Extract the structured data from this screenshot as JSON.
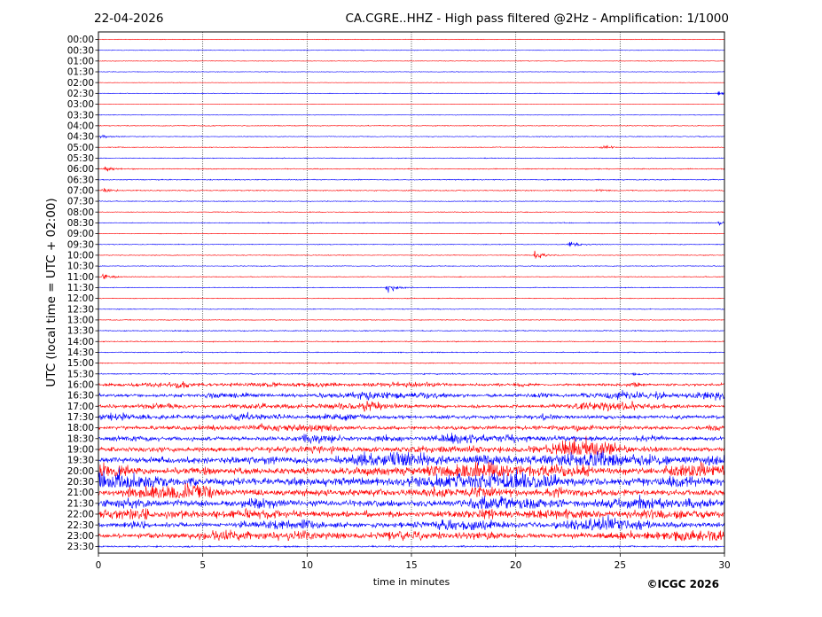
{
  "header": {
    "date": "22-04-2026",
    "title": "CA.CGRE..HHZ - High pass filtered @2Hz - Amplification: 1/1000"
  },
  "footer": {
    "copyright": "©ICGC 2026"
  },
  "colors": {
    "red": "#ff0000",
    "blue": "#0000ff",
    "grid": "#000000",
    "axis": "#000000"
  },
  "chart_data": {
    "type": "line",
    "title": "CA.CGRE..HHZ - High pass filtered @2Hz - Amplification: 1/1000",
    "xlabel": "time in minutes",
    "ylabel": "UTC (local time = UTC + 02:00)",
    "xlim": [
      0,
      30
    ],
    "x_ticks": [
      "0",
      "5",
      "10",
      "15",
      "20",
      "25",
      "30"
    ],
    "grid": "vertical dotted lines at 5-minute intervals",
    "row_labels": [
      "00:00",
      "00:30",
      "01:00",
      "01:30",
      "02:00",
      "02:30",
      "03:00",
      "03:30",
      "04:00",
      "04:30",
      "05:00",
      "05:30",
      "06:00",
      "06:30",
      "07:00",
      "07:30",
      "08:00",
      "08:30",
      "09:00",
      "09:30",
      "10:00",
      "10:30",
      "11:00",
      "11:30",
      "12:00",
      "12:30",
      "13:00",
      "13:30",
      "14:00",
      "14:30",
      "15:00",
      "15:30",
      "16:00",
      "16:30",
      "17:00",
      "17:30",
      "18:00",
      "18:30",
      "19:00",
      "19:30",
      "20:00",
      "20:30",
      "21:00",
      "21:30",
      "22:00",
      "22:30",
      "23:00",
      "23:30"
    ],
    "trace_colors": "alternating red (full hours) and blue (half hours)",
    "noise_level": [
      0.3,
      0.3,
      0.3,
      0.3,
      0.2,
      0.3,
      0.2,
      0.3,
      0.4,
      0.4,
      0.4,
      0.4,
      0.5,
      0.5,
      0.5,
      0.4,
      0.4,
      0.4,
      0.3,
      0.4,
      0.4,
      0.4,
      0.4,
      0.4,
      0.4,
      0.4,
      0.4,
      0.5,
      0.5,
      0.5,
      0.5,
      0.6,
      1.2,
      1.6,
      1.6,
      1.8,
      1.8,
      2.0,
      2.2,
      3.2,
      3.6,
      3.8,
      3.2,
      3.2,
      2.8,
      2.5,
      2.5,
      0.8
    ],
    "events": [
      {
        "row": "02:30",
        "minute": 29.8,
        "amplitude": 2.2
      },
      {
        "row": "04:30",
        "minute": 0.2,
        "amplitude": 1.5
      },
      {
        "row": "05:00",
        "minute": 24.2,
        "amplitude": 2.0
      },
      {
        "row": "06:00",
        "minute": 0.4,
        "amplitude": 2.0
      },
      {
        "row": "07:00",
        "minute": 0.3,
        "amplitude": 2.5
      },
      {
        "row": "07:00",
        "minute": 24.0,
        "amplitude": 1.5
      },
      {
        "row": "08:30",
        "minute": 29.8,
        "amplitude": 2.0
      },
      {
        "row": "09:30",
        "minute": 22.6,
        "amplitude": 4.0
      },
      {
        "row": "10:00",
        "minute": 21.0,
        "amplitude": 3.5
      },
      {
        "row": "11:00",
        "minute": 0.3,
        "amplitude": 3.0
      },
      {
        "row": "11:30",
        "minute": 13.9,
        "amplitude": 5.0
      },
      {
        "row": "15:30",
        "minute": 25.7,
        "amplitude": 2.0
      },
      {
        "row": "16:00",
        "minute": 3.8,
        "amplitude": 3.0
      },
      {
        "row": "16:30",
        "minute": 25.0,
        "amplitude": 3.0
      },
      {
        "row": "22:30",
        "minute": 9.9,
        "amplitude": 5.0
      }
    ]
  }
}
